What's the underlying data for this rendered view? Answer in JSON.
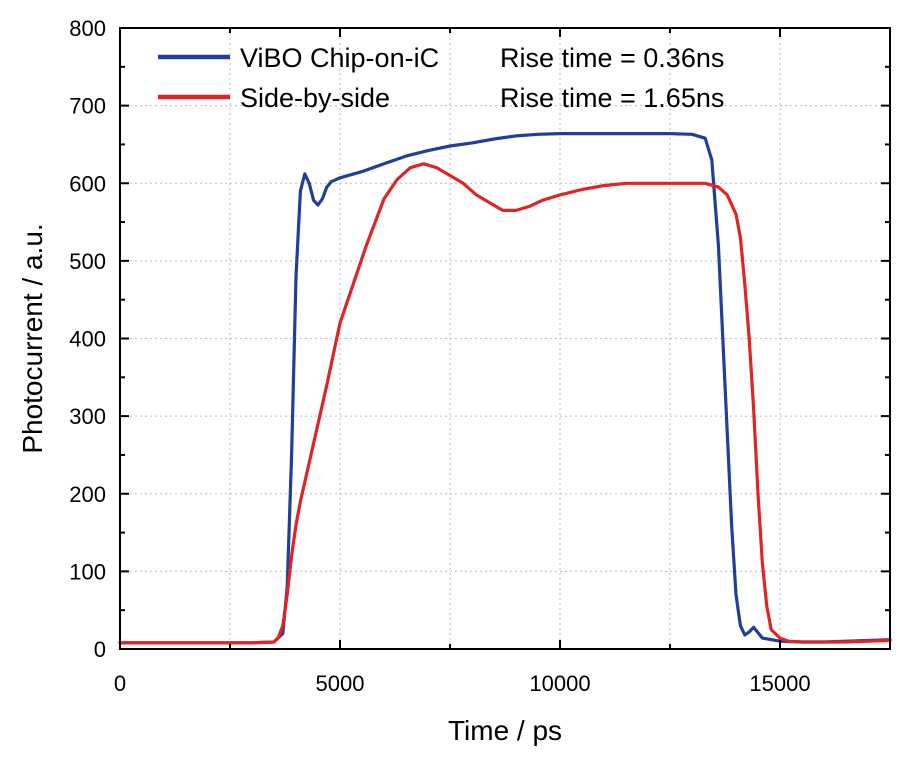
{
  "chart_data": {
    "type": "line",
    "xlabel": "Time / ps",
    "ylabel": "Photocurrent / a.u.",
    "xlim": [
      0,
      17500
    ],
    "ylim": [
      0,
      800
    ],
    "x_ticks": [
      0,
      5000,
      10000,
      15000
    ],
    "y_ticks": [
      0,
      100,
      200,
      300,
      400,
      500,
      600,
      700,
      800
    ],
    "grid": true,
    "legend_position": "top",
    "series": [
      {
        "name": "ViBO Chip-on-iC",
        "annotation": "Rise time = 0.36ns",
        "color": "#1f3f9a",
        "x": [
          0,
          1000,
          2000,
          3000,
          3500,
          3700,
          3800,
          3900,
          4000,
          4100,
          4200,
          4300,
          4400,
          4500,
          4600,
          4700,
          4800,
          5000,
          5500,
          6000,
          6500,
          7000,
          7500,
          8000,
          8500,
          9000,
          9500,
          10000,
          10500,
          11000,
          11500,
          12000,
          12500,
          13000,
          13300,
          13450,
          13600,
          13700,
          13800,
          13900,
          14000,
          14100,
          14200,
          14300,
          14400,
          14600,
          15000,
          15500,
          16000,
          16500,
          17000,
          17500
        ],
        "y": [
          8,
          8,
          8,
          8,
          9,
          20,
          80,
          250,
          480,
          590,
          612,
          600,
          578,
          572,
          580,
          595,
          602,
          607,
          615,
          625,
          635,
          642,
          648,
          652,
          657,
          661,
          663,
          664,
          664,
          664,
          664,
          664,
          664,
          663,
          658,
          630,
          520,
          400,
          280,
          160,
          70,
          30,
          18,
          22,
          28,
          14,
          10,
          9,
          9,
          10,
          11,
          12
        ]
      },
      {
        "name": "Side-by-side",
        "annotation": "Rise time = 1.65ns",
        "color": "#e02424",
        "x": [
          0,
          1000,
          2000,
          3000,
          3500,
          3600,
          3700,
          3800,
          3900,
          4000,
          4100,
          4200,
          4300,
          4500,
          4700,
          5000,
          5300,
          5600,
          6000,
          6300,
          6600,
          6900,
          7200,
          7500,
          7800,
          8100,
          8400,
          8700,
          9000,
          9300,
          9600,
          10000,
          10500,
          11000,
          11500,
          12000,
          12500,
          13000,
          13300,
          13600,
          13800,
          14000,
          14100,
          14200,
          14300,
          14400,
          14500,
          14600,
          14700,
          14800,
          15000,
          15200,
          15500,
          16000,
          16500,
          17000,
          17500
        ],
        "y": [
          8,
          8,
          8,
          8,
          9,
          15,
          30,
          70,
          120,
          160,
          190,
          215,
          240,
          290,
          340,
          420,
          470,
          520,
          580,
          605,
          620,
          625,
          620,
          610,
          600,
          585,
          575,
          565,
          565,
          570,
          578,
          585,
          592,
          597,
          600,
          600,
          600,
          600,
          600,
          595,
          585,
          560,
          530,
          470,
          400,
          310,
          200,
          110,
          55,
          25,
          14,
          10,
          9,
          9,
          9,
          10,
          11
        ]
      }
    ]
  }
}
